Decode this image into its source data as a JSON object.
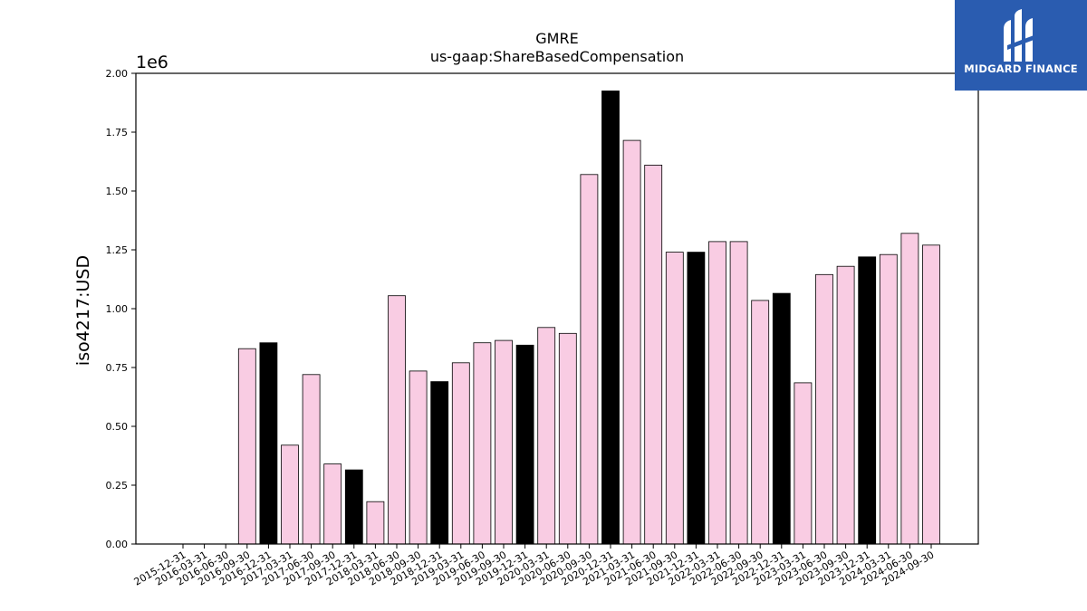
{
  "chart_data": {
    "type": "bar",
    "title": "GMRE",
    "subtitle": "us-gaap:ShareBasedCompensation",
    "ylabel": "iso4217:USD",
    "xlabel": "",
    "y_offset_label": "1e6",
    "ylim": [
      0,
      2.0
    ],
    "yticks": [
      "0.00",
      "0.25",
      "0.50",
      "0.75",
      "1.00",
      "1.25",
      "1.50",
      "1.75",
      "2.00"
    ],
    "categories": [
      "2015-12-31",
      "2016-03-31",
      "2016-06-30",
      "2016-09-30",
      "2016-12-31",
      "2017-03-31",
      "2017-06-30",
      "2017-09-30",
      "2017-12-31",
      "2018-03-31",
      "2018-06-30",
      "2018-09-30",
      "2018-12-31",
      "2019-03-31",
      "2019-06-30",
      "2019-09-30",
      "2019-12-31",
      "2020-03-31",
      "2020-06-30",
      "2020-09-30",
      "2020-12-31",
      "2021-03-31",
      "2021-06-30",
      "2021-09-30",
      "2021-12-31",
      "2022-03-31",
      "2022-06-30",
      "2022-09-30",
      "2022-12-31",
      "2023-03-31",
      "2023-06-30",
      "2023-09-30",
      "2023-12-31",
      "2024-03-31",
      "2024-06-30",
      "2024-09-30"
    ],
    "values": [
      null,
      null,
      null,
      0.83,
      0.855,
      0.42,
      0.72,
      0.34,
      0.315,
      0.18,
      1.055,
      0.735,
      0.69,
      0.77,
      0.855,
      0.865,
      0.845,
      0.92,
      0.895,
      1.57,
      1.925,
      1.715,
      1.61,
      1.24,
      1.24,
      1.285,
      1.285,
      1.035,
      1.065,
      0.685,
      1.145,
      1.18,
      1.22,
      1.23,
      1.32,
      1.27
    ],
    "colors": {
      "quarter_bar": "#f9cce3",
      "year_end_bar": "#000000",
      "bar_edge": "#000000"
    },
    "year_end_highlight": true
  },
  "logo": {
    "text": "MIDGARD FINANCE",
    "background": "#2a5cb0"
  }
}
